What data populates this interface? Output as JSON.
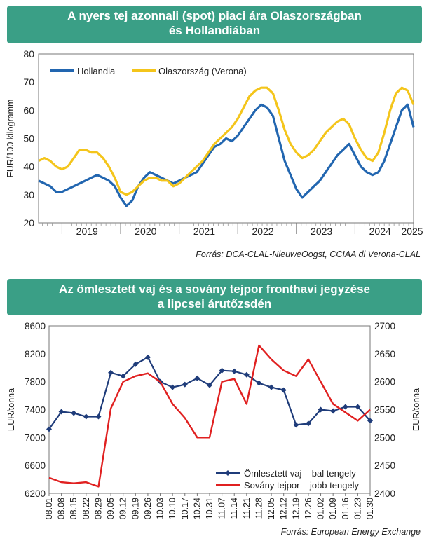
{
  "charts": [
    {
      "title_line1": "A nyers tej azonnali (spot) piaci ára Olaszországban",
      "title_line2": "és Hollandiában",
      "source": "Forrás: DCA-CLAL-NieuweOogst, CCIAA di Verona-CLAL",
      "ylabel": "EUR/100 kilogramm",
      "yticks": [
        "20",
        "30",
        "40",
        "50",
        "60",
        "70",
        "80"
      ],
      "year_labels": [
        "2019",
        "2020",
        "2021",
        "2022",
        "2023",
        "2024",
        "2025"
      ],
      "legend": [
        "Hollandia",
        "Olaszország (Verona)"
      ]
    },
    {
      "title_line1": "Az ömlesztett vaj és a sovány tejpor fronthavi jegyzése",
      "title_line2": "a lipcsei árutőzsdén",
      "source": "Forrás: European Energy Exchange",
      "ylabel_left": "EUR/tonna",
      "ylabel_right": "EUR/tonna",
      "yticks_left": [
        "6200",
        "6600",
        "7000",
        "7400",
        "7800",
        "8200",
        "8600"
      ],
      "yticks_right": [
        "2400",
        "2450",
        "2500",
        "2550",
        "2600",
        "2650",
        "2700"
      ],
      "xticks": [
        "08.01",
        "08.08",
        "08.15",
        "08.22",
        "08.29",
        "09.05",
        "09.12",
        "09.19",
        "09.26",
        "10.03",
        "10.10",
        "10.17",
        "10.24",
        "10.31",
        "11.07",
        "11.14",
        "11.21",
        "11.28",
        "12.05",
        "12.12",
        "12.19",
        "12.26",
        "01.02",
        "01.09",
        "01.16",
        "01.23",
        "01.30"
      ],
      "legend": [
        "Ömlesztett vaj – bal tengely",
        "Sovány tejpor – jobb tengely"
      ]
    }
  ],
  "chart_data": [
    {
      "type": "line",
      "ylim": [
        20,
        80
      ],
      "x_range": [
        2018.6,
        2025.0
      ],
      "series": [
        {
          "name": "Hollandia",
          "color": "#2266b0",
          "x": [
            2018.6,
            2018.7,
            2018.8,
            2018.9,
            2019.0,
            2019.1,
            2019.2,
            2019.3,
            2019.4,
            2019.5,
            2019.6,
            2019.7,
            2019.8,
            2019.9,
            2020.0,
            2020.1,
            2020.2,
            2020.3,
            2020.4,
            2020.5,
            2020.6,
            2020.7,
            2020.8,
            2020.9,
            2021.0,
            2021.1,
            2021.2,
            2021.3,
            2021.4,
            2021.5,
            2021.6,
            2021.7,
            2021.8,
            2021.9,
            2022.0,
            2022.1,
            2022.2,
            2022.3,
            2022.4,
            2022.5,
            2022.6,
            2022.7,
            2022.8,
            2022.9,
            2023.0,
            2023.1,
            2023.2,
            2023.3,
            2023.4,
            2023.5,
            2023.6,
            2023.7,
            2023.8,
            2023.9,
            2024.0,
            2024.1,
            2024.2,
            2024.3,
            2024.4,
            2024.5,
            2024.6,
            2024.7,
            2024.8,
            2024.9,
            2025.0
          ],
          "values": [
            35,
            34,
            33,
            31,
            31,
            32,
            33,
            34,
            35,
            36,
            37,
            36,
            35,
            33,
            29,
            26,
            28,
            33,
            36,
            38,
            37,
            36,
            35,
            34,
            35,
            36,
            37,
            38,
            41,
            44,
            47,
            48,
            50,
            49,
            51,
            54,
            57,
            60,
            62,
            61,
            58,
            50,
            42,
            37,
            32,
            29,
            31,
            33,
            35,
            38,
            41,
            44,
            46,
            48,
            44,
            40,
            38,
            37,
            38,
            42,
            48,
            54,
            60,
            62,
            54
          ]
        },
        {
          "name": "Olaszország (Verona)",
          "color": "#f4c51b",
          "x": [
            2018.6,
            2018.7,
            2018.8,
            2018.9,
            2019.0,
            2019.1,
            2019.2,
            2019.3,
            2019.4,
            2019.5,
            2019.6,
            2019.7,
            2019.8,
            2019.9,
            2020.0,
            2020.1,
            2020.2,
            2020.3,
            2020.4,
            2020.5,
            2020.6,
            2020.7,
            2020.8,
            2020.9,
            2021.0,
            2021.1,
            2021.2,
            2021.3,
            2021.4,
            2021.5,
            2021.6,
            2021.7,
            2021.8,
            2021.9,
            2022.0,
            2022.1,
            2022.2,
            2022.3,
            2022.4,
            2022.5,
            2022.6,
            2022.7,
            2022.8,
            2022.9,
            2023.0,
            2023.1,
            2023.2,
            2023.3,
            2023.4,
            2023.5,
            2023.6,
            2023.7,
            2023.8,
            2023.9,
            2024.0,
            2024.1,
            2024.2,
            2024.3,
            2024.4,
            2024.5,
            2024.6,
            2024.7,
            2024.8,
            2024.9,
            2025.0
          ],
          "values": [
            42,
            43,
            42,
            40,
            39,
            40,
            43,
            46,
            46,
            45,
            45,
            43,
            40,
            36,
            31,
            30,
            31,
            33,
            35,
            36,
            36,
            35,
            35,
            33,
            34,
            36,
            38,
            40,
            42,
            45,
            48,
            50,
            52,
            54,
            57,
            61,
            65,
            67,
            68,
            68,
            66,
            60,
            53,
            48,
            45,
            43,
            44,
            46,
            49,
            52,
            54,
            56,
            57,
            55,
            50,
            46,
            43,
            42,
            45,
            52,
            60,
            66,
            68,
            67,
            62
          ]
        }
      ]
    },
    {
      "type": "line",
      "categories": [
        "08.01",
        "08.08",
        "08.15",
        "08.22",
        "08.29",
        "09.05",
        "09.12",
        "09.19",
        "09.26",
        "10.03",
        "10.10",
        "10.17",
        "10.24",
        "10.31",
        "11.07",
        "11.14",
        "11.21",
        "11.28",
        "12.05",
        "12.12",
        "12.19",
        "12.26",
        "01.02",
        "01.09",
        "01.16",
        "01.23",
        "01.30"
      ],
      "ylim_left": [
        6200,
        8600
      ],
      "ylim_right": [
        2400,
        2700
      ],
      "series": [
        {
          "name": "Ömlesztett vaj – bal tengely",
          "axis": "left",
          "color": "#1f3c7a",
          "values": [
            7120,
            7370,
            7350,
            7300,
            7300,
            7930,
            7880,
            8050,
            8150,
            7800,
            7720,
            7760,
            7850,
            7750,
            7960,
            7950,
            7900,
            7780,
            7720,
            7680,
            7180,
            7200,
            7400,
            7380,
            7440,
            7440,
            7240
          ]
        },
        {
          "name": "Sovány tejpor – jobb tengely",
          "axis": "right",
          "color": "#e02020",
          "values": [
            2428,
            2420,
            2418,
            2420,
            2412,
            2552,
            2600,
            2610,
            2615,
            2600,
            2560,
            2535,
            2500,
            2500,
            2600,
            2605,
            2560,
            2665,
            2640,
            2620,
            2610,
            2640,
            2600,
            2560,
            2545,
            2530,
            2550
          ]
        }
      ]
    }
  ]
}
